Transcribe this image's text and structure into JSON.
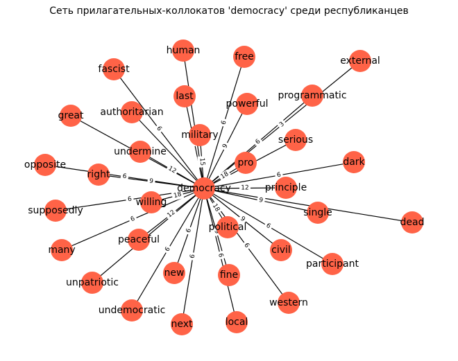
{
  "title": "Сеть прилагательных-коллокатов 'democracy' среди республиканцев",
  "colors": {
    "node": "#ff6347",
    "edge": "#000000",
    "background": "#ffffff"
  },
  "graph": {
    "center": "democracy",
    "nodes": [
      "democracy",
      "human",
      "free",
      "external",
      "fascist",
      "last",
      "powerful",
      "programmatic",
      "great",
      "authoritarian",
      "military",
      "serious",
      "undermine",
      "pro",
      "opposite",
      "right",
      "dark",
      "principle",
      "supposedly",
      "willing",
      "single",
      "dead",
      "political",
      "peaceful",
      "many",
      "civil",
      "participant",
      "unpatriotic",
      "new",
      "fine",
      "undemocratic",
      "western",
      "next",
      "local"
    ],
    "edges": [
      {
        "target": "last",
        "weight": "6"
      },
      {
        "target": "human",
        "weight": ""
      },
      {
        "target": "free",
        "weight": "6"
      },
      {
        "target": "external",
        "weight": "3"
      },
      {
        "target": "fascist",
        "weight": "6"
      },
      {
        "target": "powerful",
        "weight": "9"
      },
      {
        "target": "programmatic",
        "weight": "6"
      },
      {
        "target": "great",
        "weight": "9"
      },
      {
        "target": "authoritarian",
        "weight": ""
      },
      {
        "target": "military",
        "weight": "15"
      },
      {
        "target": "serious",
        "weight": ""
      },
      {
        "target": "undermine",
        "weight": "12"
      },
      {
        "target": "pro",
        "weight": "18"
      },
      {
        "target": "opposite",
        "weight": "6"
      },
      {
        "target": "right",
        "weight": "9"
      },
      {
        "target": "dark",
        "weight": "6"
      },
      {
        "target": "principle",
        "weight": "12"
      },
      {
        "target": "supposedly",
        "weight": "6"
      },
      {
        "target": "willing",
        "weight": "18"
      },
      {
        "target": "single",
        "weight": "9"
      },
      {
        "target": "dead",
        "weight": ""
      },
      {
        "target": "political",
        "weight": "18"
      },
      {
        "target": "peaceful",
        "weight": "12"
      },
      {
        "target": "many",
        "weight": "6"
      },
      {
        "target": "civil",
        "weight": "9"
      },
      {
        "target": "participant",
        "weight": "6"
      },
      {
        "target": "unpatriotic",
        "weight": ""
      },
      {
        "target": "new",
        "weight": "6"
      },
      {
        "target": "fine",
        "weight": "9"
      },
      {
        "target": "undemocratic",
        "weight": "6"
      },
      {
        "target": "western",
        "weight": "6"
      },
      {
        "target": "next",
        "weight": "6"
      },
      {
        "target": "local",
        "weight": "6"
      }
    ]
  }
}
